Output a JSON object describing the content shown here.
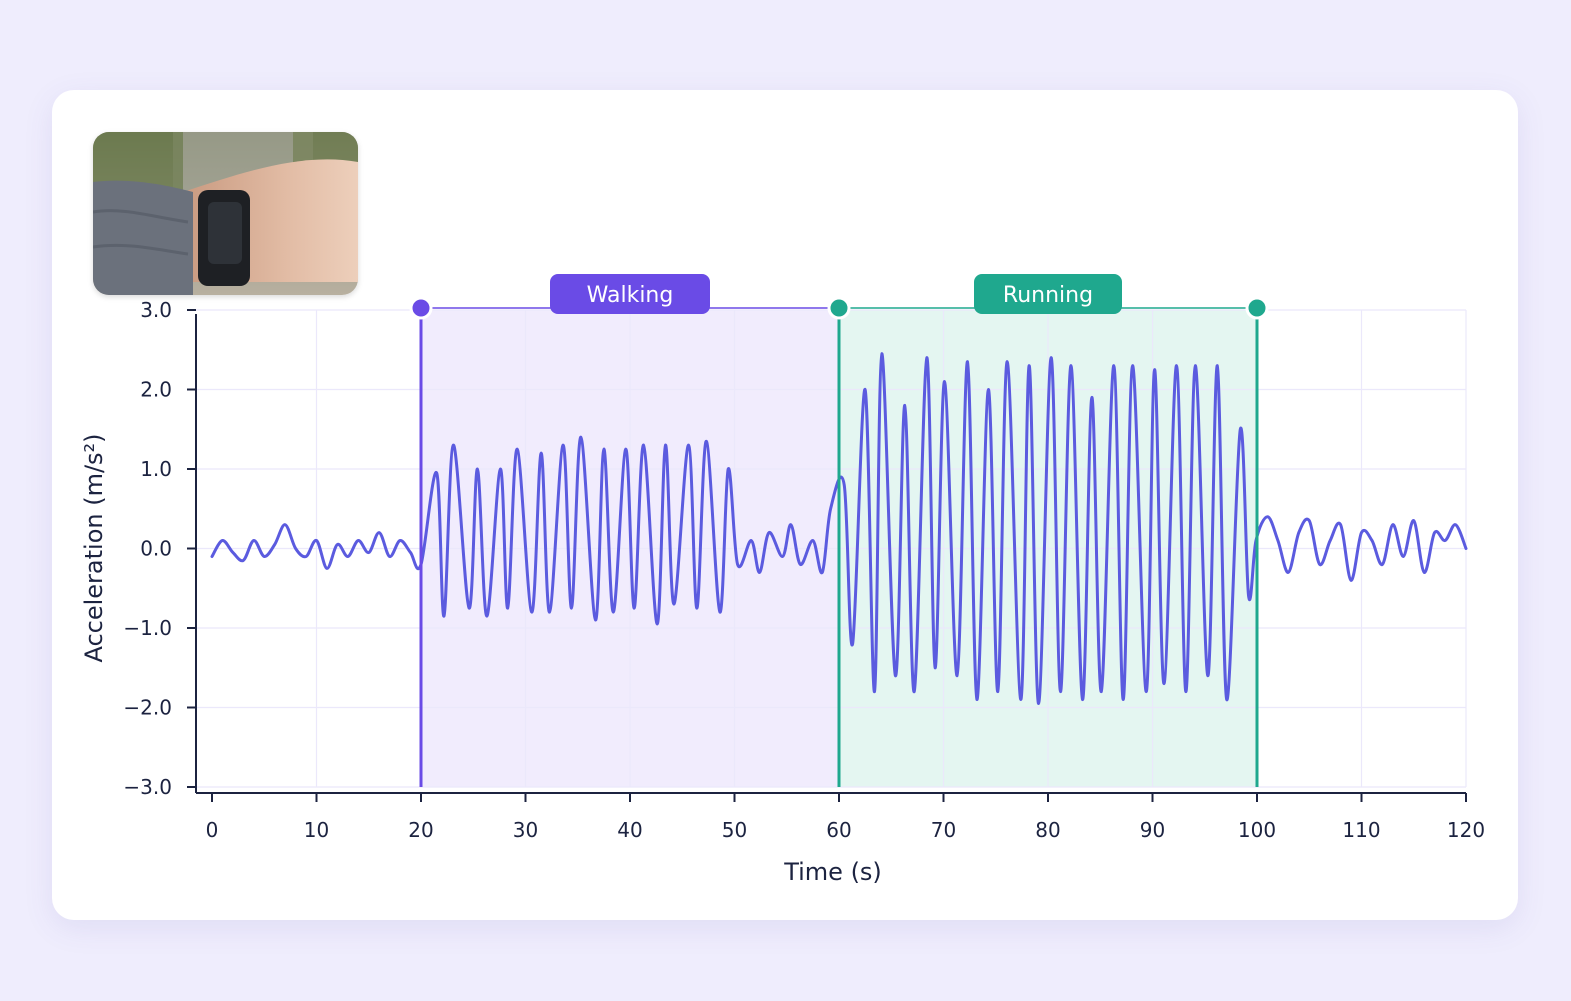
{
  "colors": {
    "page_background": "#efedfd",
    "card_background": "#ffffff",
    "signal": "#5b5bdf",
    "walking": "#6a4be6",
    "walking_fill": "#f1ecfd",
    "running": "#1fa88e",
    "running_fill": "#e4f6f1",
    "grid": "#ebe8fb",
    "axis": "#1c2340"
  },
  "photo": {
    "icon": "wrist-smartwatch-photo"
  },
  "chart_data": {
    "type": "line",
    "title": "",
    "xlabel": "Time (s)",
    "ylabel": "Acceleration (m/s²)",
    "xlim": [
      0,
      120
    ],
    "ylim": [
      -3.0,
      3.0
    ],
    "x_ticks": [
      0,
      10,
      20,
      30,
      40,
      50,
      60,
      70,
      80,
      90,
      100,
      110,
      120
    ],
    "x_tick_labels": [
      "0",
      "10",
      "20",
      "30",
      "40",
      "50",
      "60",
      "70",
      "80",
      "90",
      "100",
      "110",
      "120"
    ],
    "y_ticks": [
      3,
      2,
      1,
      0,
      -1,
      -2,
      -3
    ],
    "y_tick_labels": [
      "3.0",
      "2.0",
      "1.0",
      "0.0",
      "−1.0",
      "−2.0",
      "−3.0"
    ],
    "grid": true,
    "segments": [
      {
        "label": "Walking",
        "start": 20,
        "end": 60,
        "color": "#6a4be6"
      },
      {
        "label": "Running",
        "start": 60,
        "end": 100,
        "color": "#1fa88e"
      }
    ],
    "series": [
      {
        "x": [
          0,
          1,
          2,
          3,
          4,
          5,
          6,
          7,
          8,
          9,
          10,
          11,
          12,
          13,
          14,
          15,
          16,
          17,
          18,
          19,
          20,
          21.5,
          22.2,
          23.1,
          24.6,
          25.4,
          26.3,
          27.6,
          28.3,
          29.2,
          30.6,
          31.5,
          32.3,
          33.6,
          34.4,
          35.3,
          36.7,
          37.5,
          38.4,
          39.6,
          40.4,
          41.3,
          42.6,
          43.4,
          44.2,
          45.6,
          46.4,
          47.3,
          48.6,
          49.4,
          50.3,
          51.6,
          52.4,
          53.3,
          54.6,
          55.4,
          56.3,
          57.5,
          58.4,
          59.2,
          60.5,
          61.3,
          62.5,
          63.4,
          64.1,
          65.4,
          66.3,
          67.2,
          68.4,
          69.2,
          70.1,
          71.3,
          72.3,
          73.2,
          74.3,
          75.2,
          76.1,
          77.4,
          78.2,
          79.1,
          80.3,
          81.2,
          82.2,
          83.3,
          84.2,
          85.1,
          86.3,
          87.2,
          88.1,
          89.4,
          90.2,
          91.1,
          92.3,
          93.2,
          94.1,
          95.3,
          96.2,
          97.1,
          98.4,
          99.2,
          99.9,
          101,
          102,
          103,
          104,
          105,
          106,
          107,
          108,
          109,
          110,
          111,
          112,
          113,
          114,
          115,
          116,
          117,
          118,
          119,
          120
        ],
        "y": [
          -0.1,
          0.1,
          -0.05,
          -0.15,
          0.1,
          -0.1,
          0.05,
          0.3,
          0.0,
          -0.1,
          0.1,
          -0.25,
          0.05,
          -0.1,
          0.1,
          -0.05,
          0.2,
          -0.1,
          0.1,
          -0.05,
          -0.2,
          0.95,
          -0.85,
          1.3,
          -0.75,
          1.0,
          -0.85,
          1.0,
          -0.75,
          1.25,
          -0.8,
          1.2,
          -0.8,
          1.3,
          -0.75,
          1.4,
          -0.9,
          1.25,
          -0.8,
          1.25,
          -0.75,
          1.3,
          -0.95,
          1.3,
          -0.7,
          1.3,
          -0.75,
          1.35,
          -0.8,
          1.0,
          -0.2,
          0.1,
          -0.3,
          0.2,
          -0.1,
          0.3,
          -0.2,
          0.1,
          -0.3,
          0.5,
          0.8,
          -1.2,
          2.0,
          -1.8,
          2.45,
          -1.6,
          1.8,
          -1.8,
          2.4,
          -1.5,
          2.1,
          -1.6,
          2.35,
          -1.9,
          2.0,
          -1.8,
          2.35,
          -1.9,
          2.3,
          -1.95,
          2.4,
          -1.8,
          2.3,
          -1.9,
          1.9,
          -1.8,
          2.3,
          -1.9,
          2.3,
          -1.8,
          2.25,
          -1.7,
          2.3,
          -1.8,
          2.3,
          -1.6,
          2.3,
          -1.9,
          1.5,
          -0.6,
          0.1,
          0.4,
          0.1,
          -0.3,
          0.2,
          0.35,
          -0.2,
          0.1,
          0.3,
          -0.4,
          0.2,
          0.1,
          -0.2,
          0.3,
          -0.1,
          0.35,
          -0.3,
          0.2,
          0.1,
          0.3,
          0.0
        ]
      }
    ]
  }
}
